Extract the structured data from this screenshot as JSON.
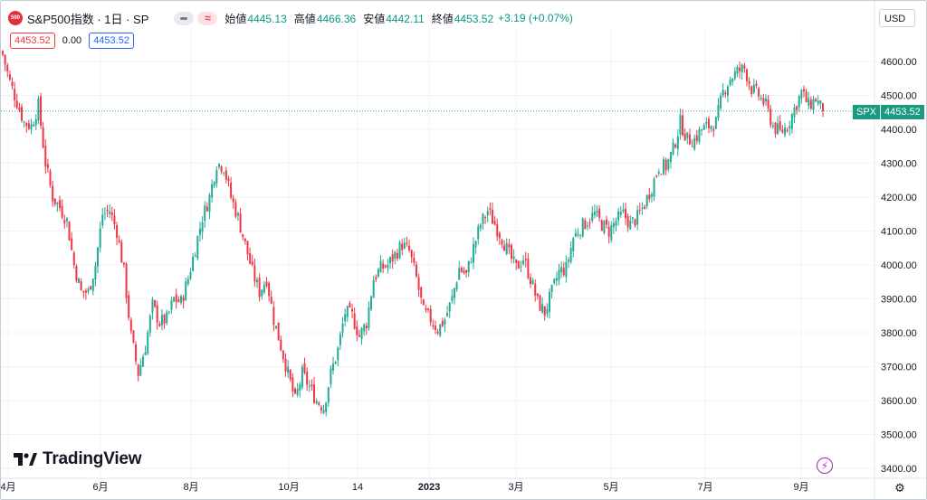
{
  "header": {
    "logo_text": "500",
    "symbol_title": "S&P500指数 · 1日 · SP",
    "wave_icon": "≈",
    "open_label": "始値",
    "open_value": "4445.13",
    "high_label": "高値",
    "high_value": "4466.36",
    "low_label": "安値",
    "low_value": "4442.11",
    "close_label": "終値",
    "close_value": "4453.52",
    "change": "+3.19 (+0.07%)"
  },
  "quote": {
    "bid": "4453.52",
    "spread": "0.00",
    "ask": "4453.52"
  },
  "currency": "USD",
  "price_tag": {
    "symbol": "SPX",
    "value": "4453.52"
  },
  "branding": {
    "name": "TradingView"
  },
  "colors": {
    "up": "#22ab94",
    "down": "#f23645",
    "grid": "#f0f3fa",
    "last_price_line": "#22ab94"
  },
  "chart_data": {
    "type": "candlestick",
    "title": "S&P500指数 · 1日 · SP",
    "ylim": [
      3350,
      4700
    ],
    "y_ticks": [
      "4600.00",
      "4500.00",
      "4400.00",
      "4300.00",
      "4200.00",
      "4100.00",
      "4000.00",
      "3900.00",
      "3800.00",
      "3700.00",
      "3600.00",
      "3500.00",
      "3400.00"
    ],
    "x_labels": [
      {
        "label": "4月",
        "bold": false
      },
      {
        "label": "6月",
        "bold": false
      },
      {
        "label": "8月",
        "bold": false
      },
      {
        "label": "10月",
        "bold": false
      },
      {
        "label": "14",
        "bold": false
      },
      {
        "label": "2023",
        "bold": true
      },
      {
        "label": "3月",
        "bold": false
      },
      {
        "label": "5月",
        "bold": false
      },
      {
        "label": "7月",
        "bold": false
      },
      {
        "label": "9月",
        "bold": false
      }
    ],
    "last_price": 4453.52,
    "close_path": [
      {
        "d": 0,
        "c": 4620
      },
      {
        "d": 3,
        "c": 4540
      },
      {
        "d": 6,
        "c": 4480
      },
      {
        "d": 9,
        "c": 4420
      },
      {
        "d": 12,
        "c": 4410
      },
      {
        "d": 15,
        "c": 4470
      },
      {
        "d": 18,
        "c": 4300
      },
      {
        "d": 21,
        "c": 4200
      },
      {
        "d": 24,
        "c": 4170
      },
      {
        "d": 27,
        "c": 4130
      },
      {
        "d": 30,
        "c": 4000
      },
      {
        "d": 33,
        "c": 3920
      },
      {
        "d": 36,
        "c": 3920
      },
      {
        "d": 39,
        "c": 4000
      },
      {
        "d": 42,
        "c": 4150
      },
      {
        "d": 45,
        "c": 4160
      },
      {
        "d": 48,
        "c": 4100
      },
      {
        "d": 51,
        "c": 3980
      },
      {
        "d": 54,
        "c": 3790
      },
      {
        "d": 57,
        "c": 3680
      },
      {
        "d": 60,
        "c": 3760
      },
      {
        "d": 63,
        "c": 3880
      },
      {
        "d": 66,
        "c": 3830
      },
      {
        "d": 69,
        "c": 3840
      },
      {
        "d": 72,
        "c": 3900
      },
      {
        "d": 75,
        "c": 3890
      },
      {
        "d": 78,
        "c": 3960
      },
      {
        "d": 81,
        "c": 4050
      },
      {
        "d": 84,
        "c": 4140
      },
      {
        "d": 87,
        "c": 4200
      },
      {
        "d": 90,
        "c": 4300
      },
      {
        "d": 93,
        "c": 4290
      },
      {
        "d": 96,
        "c": 4200
      },
      {
        "d": 99,
        "c": 4140
      },
      {
        "d": 102,
        "c": 4060
      },
      {
        "d": 105,
        "c": 3980
      },
      {
        "d": 108,
        "c": 3920
      },
      {
        "d": 111,
        "c": 3960
      },
      {
        "d": 114,
        "c": 3840
      },
      {
        "d": 117,
        "c": 3760
      },
      {
        "d": 120,
        "c": 3680
      },
      {
        "d": 123,
        "c": 3600
      },
      {
        "d": 126,
        "c": 3680
      },
      {
        "d": 129,
        "c": 3640
      },
      {
        "d": 132,
        "c": 3600
      },
      {
        "d": 135,
        "c": 3580
      },
      {
        "d": 138,
        "c": 3680
      },
      {
        "d": 141,
        "c": 3750
      },
      {
        "d": 144,
        "c": 3860
      },
      {
        "d": 147,
        "c": 3850
      },
      {
        "d": 150,
        "c": 3790
      },
      {
        "d": 153,
        "c": 3830
      },
      {
        "d": 156,
        "c": 3960
      },
      {
        "d": 159,
        "c": 3990
      },
      {
        "d": 162,
        "c": 4000
      },
      {
        "d": 165,
        "c": 4030
      },
      {
        "d": 168,
        "c": 4060
      },
      {
        "d": 171,
        "c": 4040
      },
      {
        "d": 174,
        "c": 3960
      },
      {
        "d": 177,
        "c": 3860
      },
      {
        "d": 180,
        "c": 3840
      },
      {
        "d": 183,
        "c": 3810
      },
      {
        "d": 186,
        "c": 3840
      },
      {
        "d": 189,
        "c": 3900
      },
      {
        "d": 192,
        "c": 3990
      },
      {
        "d": 195,
        "c": 3970
      },
      {
        "d": 198,
        "c": 4050
      },
      {
        "d": 201,
        "c": 4120
      },
      {
        "d": 204,
        "c": 4160
      },
      {
        "d": 207,
        "c": 4120
      },
      {
        "d": 210,
        "c": 4080
      },
      {
        "d": 213,
        "c": 4030
      },
      {
        "d": 216,
        "c": 3990
      },
      {
        "d": 219,
        "c": 4020
      },
      {
        "d": 222,
        "c": 3960
      },
      {
        "d": 225,
        "c": 3890
      },
      {
        "d": 228,
        "c": 3860
      },
      {
        "d": 231,
        "c": 3920
      },
      {
        "d": 234,
        "c": 3980
      },
      {
        "d": 237,
        "c": 3990
      },
      {
        "d": 240,
        "c": 4080
      },
      {
        "d": 243,
        "c": 4110
      },
      {
        "d": 246,
        "c": 4130
      },
      {
        "d": 249,
        "c": 4150
      },
      {
        "d": 252,
        "c": 4120
      },
      {
        "d": 255,
        "c": 4100
      },
      {
        "d": 258,
        "c": 4130
      },
      {
        "d": 261,
        "c": 4150
      },
      {
        "d": 264,
        "c": 4120
      },
      {
        "d": 267,
        "c": 4140
      },
      {
        "d": 270,
        "c": 4180
      },
      {
        "d": 273,
        "c": 4230
      },
      {
        "d": 276,
        "c": 4290
      },
      {
        "d": 279,
        "c": 4290
      },
      {
        "d": 282,
        "c": 4340
      },
      {
        "d": 285,
        "c": 4420
      },
      {
        "d": 288,
        "c": 4370
      },
      {
        "d": 291,
        "c": 4370
      },
      {
        "d": 294,
        "c": 4400
      },
      {
        "d": 297,
        "c": 4410
      },
      {
        "d": 300,
        "c": 4420
      },
      {
        "d": 303,
        "c": 4510
      },
      {
        "d": 306,
        "c": 4550
      },
      {
        "d": 309,
        "c": 4570
      },
      {
        "d": 312,
        "c": 4580
      },
      {
        "d": 315,
        "c": 4520
      },
      {
        "d": 318,
        "c": 4500
      },
      {
        "d": 321,
        "c": 4470
      },
      {
        "d": 324,
        "c": 4410
      },
      {
        "d": 327,
        "c": 4390
      },
      {
        "d": 330,
        "c": 4410
      },
      {
        "d": 333,
        "c": 4460
      },
      {
        "d": 336,
        "c": 4510
      },
      {
        "d": 339,
        "c": 4470
      },
      {
        "d": 342,
        "c": 4490
      },
      {
        "d": 345,
        "c": 4453.52
      }
    ],
    "total_days": 345
  }
}
